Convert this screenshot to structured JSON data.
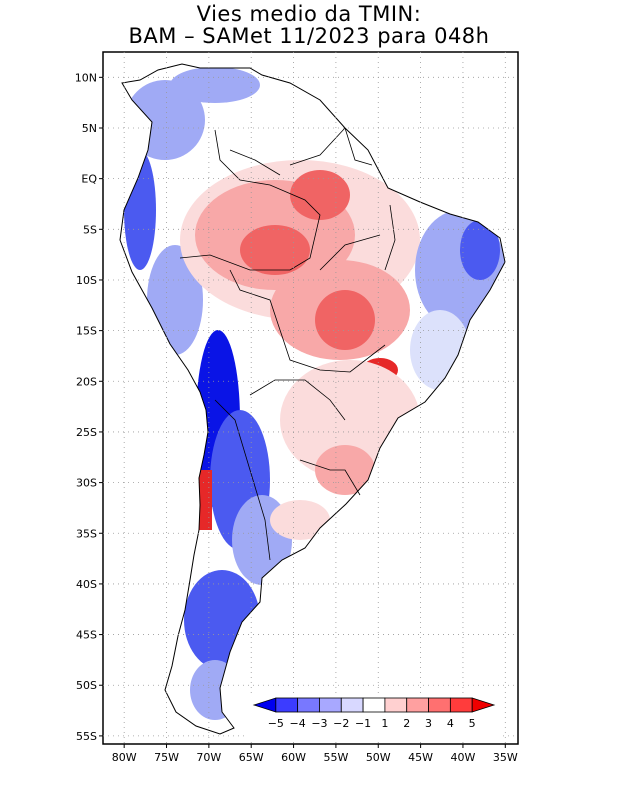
{
  "title": {
    "line1": "Vies medio da TMIN:",
    "line2": "BAM – SAMet 11/2023  para 048h"
  },
  "axes": {
    "lat_labels": [
      "10N",
      "5N",
      "EQ",
      "5S",
      "10S",
      "15S",
      "20S",
      "25S",
      "30S",
      "35S",
      "40S",
      "45S",
      "50S",
      "55S"
    ],
    "lat_values": [
      10,
      5,
      0,
      -5,
      -10,
      -15,
      -20,
      -25,
      -30,
      -35,
      -40,
      -45,
      -50,
      -55
    ],
    "lon_labels": [
      "80W",
      "75W",
      "70W",
      "65W",
      "60W",
      "55W",
      "50W",
      "45W",
      "40W",
      "35W"
    ],
    "lon_values": [
      -80,
      -75,
      -70,
      -65,
      -60,
      -55,
      -50,
      -45,
      -40,
      -35
    ],
    "lon_range": [
      -82.5,
      -33.5
    ],
    "lat_range": [
      -55.8,
      12.5
    ]
  },
  "colorbar": {
    "labels": [
      "−5",
      "−4",
      "−3",
      "−2",
      "−1",
      "1",
      "2",
      "3",
      "4",
      "5"
    ],
    "colors": [
      "#0000f0",
      "#3c3cff",
      "#7878ff",
      "#a8a8ff",
      "#d8d8ff",
      "#ffffff",
      "#ffd0d0",
      "#ffa0a0",
      "#ff7070",
      "#ff3c3c",
      "#f00000"
    ]
  },
  "colors": {
    "strong_blue": "#0a14e6",
    "blue": "#4b5af0",
    "light_blue": "#a0aaf5",
    "pale_blue": "#dce1fb",
    "pale_red": "#fbdcdc",
    "light_red": "#f8a8a8",
    "red": "#f06464",
    "strong_red": "#e62828"
  }
}
